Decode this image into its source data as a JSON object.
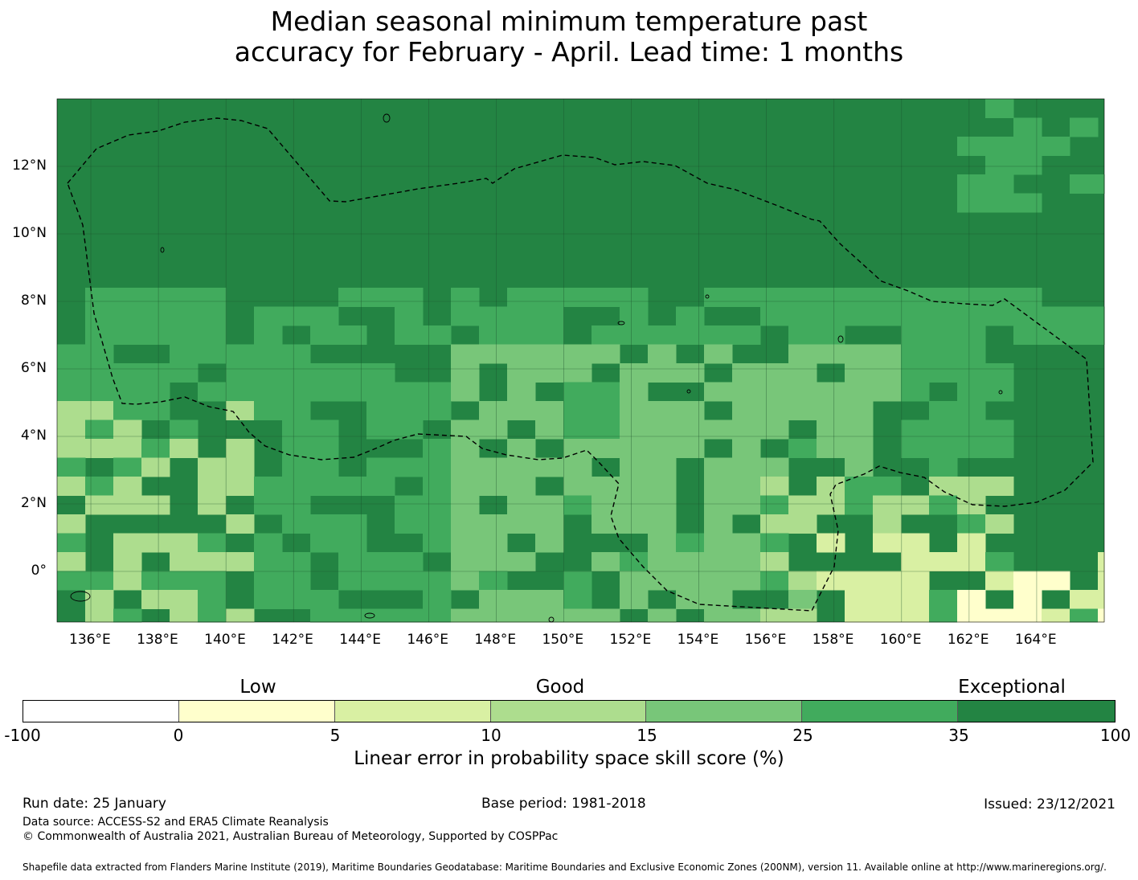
{
  "title": {
    "line1": "Median seasonal minimum temperature past",
    "line2": "accuracy for February - April. Lead time: 1 months"
  },
  "map": {
    "lat_range": [
      -1.5,
      14
    ],
    "lon_range": [
      135,
      166
    ],
    "lat_ticks": [
      "12°N",
      "10°N",
      "8°N",
      "6°N",
      "4°N",
      "2°N",
      "0°"
    ],
    "lat_tick_values": [
      12,
      10,
      8,
      6,
      4,
      2,
      0
    ],
    "lon_ticks": [
      "136°E",
      "138°E",
      "140°E",
      "142°E",
      "144°E",
      "146°E",
      "148°E",
      "150°E",
      "152°E",
      "154°E",
      "156°E",
      "158°E",
      "160°E",
      "162°E",
      "164°E"
    ],
    "lon_tick_values": [
      136,
      138,
      140,
      142,
      144,
      146,
      148,
      150,
      152,
      154,
      156,
      158,
      160,
      162,
      164
    ],
    "eez_boundary_style": "dashed",
    "gridlines": true
  },
  "legend": {
    "categories": [
      "Low",
      "Good",
      "Exceptional"
    ],
    "bounds": [
      "-100",
      "0",
      "5",
      "10",
      "15",
      "25",
      "35",
      "100"
    ],
    "colors": [
      "#ffffff",
      "#ffffcc",
      "#d9f0a3",
      "#addd8e",
      "#78c679",
      "#41ab5d",
      "#238443"
    ],
    "label": "Linear error in probability space skill score (%)"
  },
  "footer": {
    "run_date": "Run date: 25 January",
    "base_period": "Base period: 1981-2018",
    "issued": "Issued: 23/12/2021",
    "data_source": "Data source: ACCESS-S2 and ERA5 Climate Reanalysis",
    "copyright": "© Commonwealth of Australia 2021, Australian Bureau of Meteorology, Supported by COSPPac",
    "shapefile": "Shapefile data extracted from Flanders Marine Institute (2019), Maritime Boundaries Geodatabase: Maritime Boundaries and Exclusive Economic Zones (200NM), version 11. Available online at http://www.marineregions.org/."
  }
}
